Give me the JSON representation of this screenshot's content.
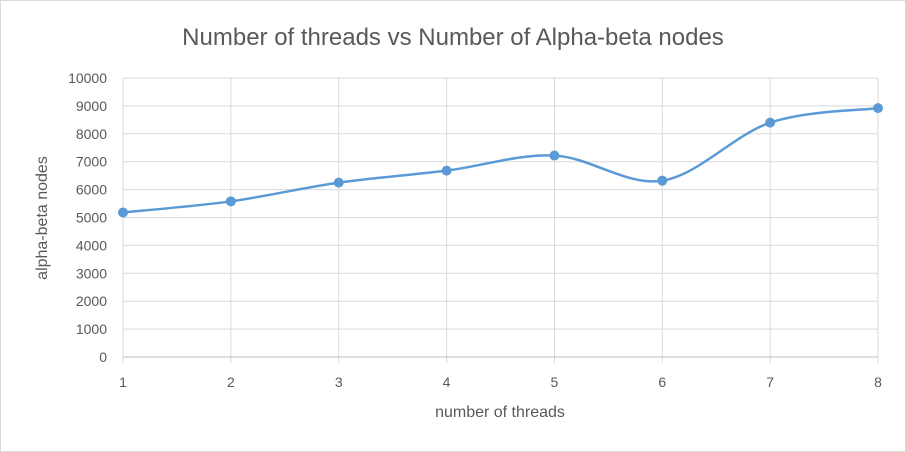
{
  "chart_data": {
    "type": "line",
    "title": "Number of threads vs Number of Alpha-beta nodes",
    "xlabel": "number of threads",
    "ylabel": "alpha-beta nodes",
    "x": [
      1,
      2,
      3,
      4,
      5,
      6,
      7,
      8
    ],
    "x_tick_labels": [
      "1",
      "2",
      "3",
      "4",
      "5",
      "6",
      "7",
      "8"
    ],
    "y_tick_labels": [
      "0",
      "1000",
      "2000",
      "3000",
      "4000",
      "5000",
      "6000",
      "7000",
      "8000",
      "9000",
      "10000"
    ],
    "ylim": [
      0,
      10000
    ],
    "grid": true,
    "smooth": true,
    "series": [
      {
        "values": [
          5180,
          5580,
          6250,
          6680,
          7220,
          6320,
          8400,
          8920
        ]
      }
    ],
    "colors": {
      "series": "#5b9bd5",
      "grid": "#d9d9d9",
      "text": "#595959"
    }
  }
}
